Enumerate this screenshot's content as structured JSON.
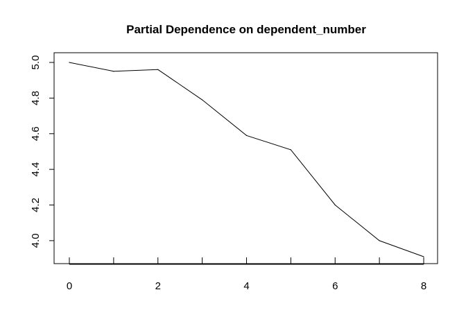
{
  "chart_data": {
    "type": "line",
    "title": "Partial Dependence on dependent_number",
    "xlabel": "",
    "ylabel": "",
    "x": [
      0,
      1,
      2,
      3,
      4,
      5,
      6,
      7,
      8
    ],
    "series": [
      {
        "values": [
          5.0,
          4.95,
          4.96,
          4.79,
          4.59,
          4.51,
          4.2,
          4.0,
          3.91
        ]
      }
    ],
    "xlim": [
      0,
      8
    ],
    "ylim": [
      3.91,
      5.0
    ],
    "x_ticks": [
      0,
      1,
      2,
      3,
      4,
      5,
      6,
      7,
      8
    ],
    "x_tick_labels": [
      "0",
      "",
      "2",
      "",
      "4",
      "",
      "6",
      "",
      "8"
    ],
    "y_ticks": [
      4.0,
      4.2,
      4.4,
      4.6,
      4.8,
      5.0
    ],
    "y_tick_labels": [
      "4.0",
      "4.2",
      "4.4",
      "4.6",
      "4.8",
      "5.0"
    ],
    "grid": false,
    "legend": "none",
    "line_color": "#000000"
  }
}
